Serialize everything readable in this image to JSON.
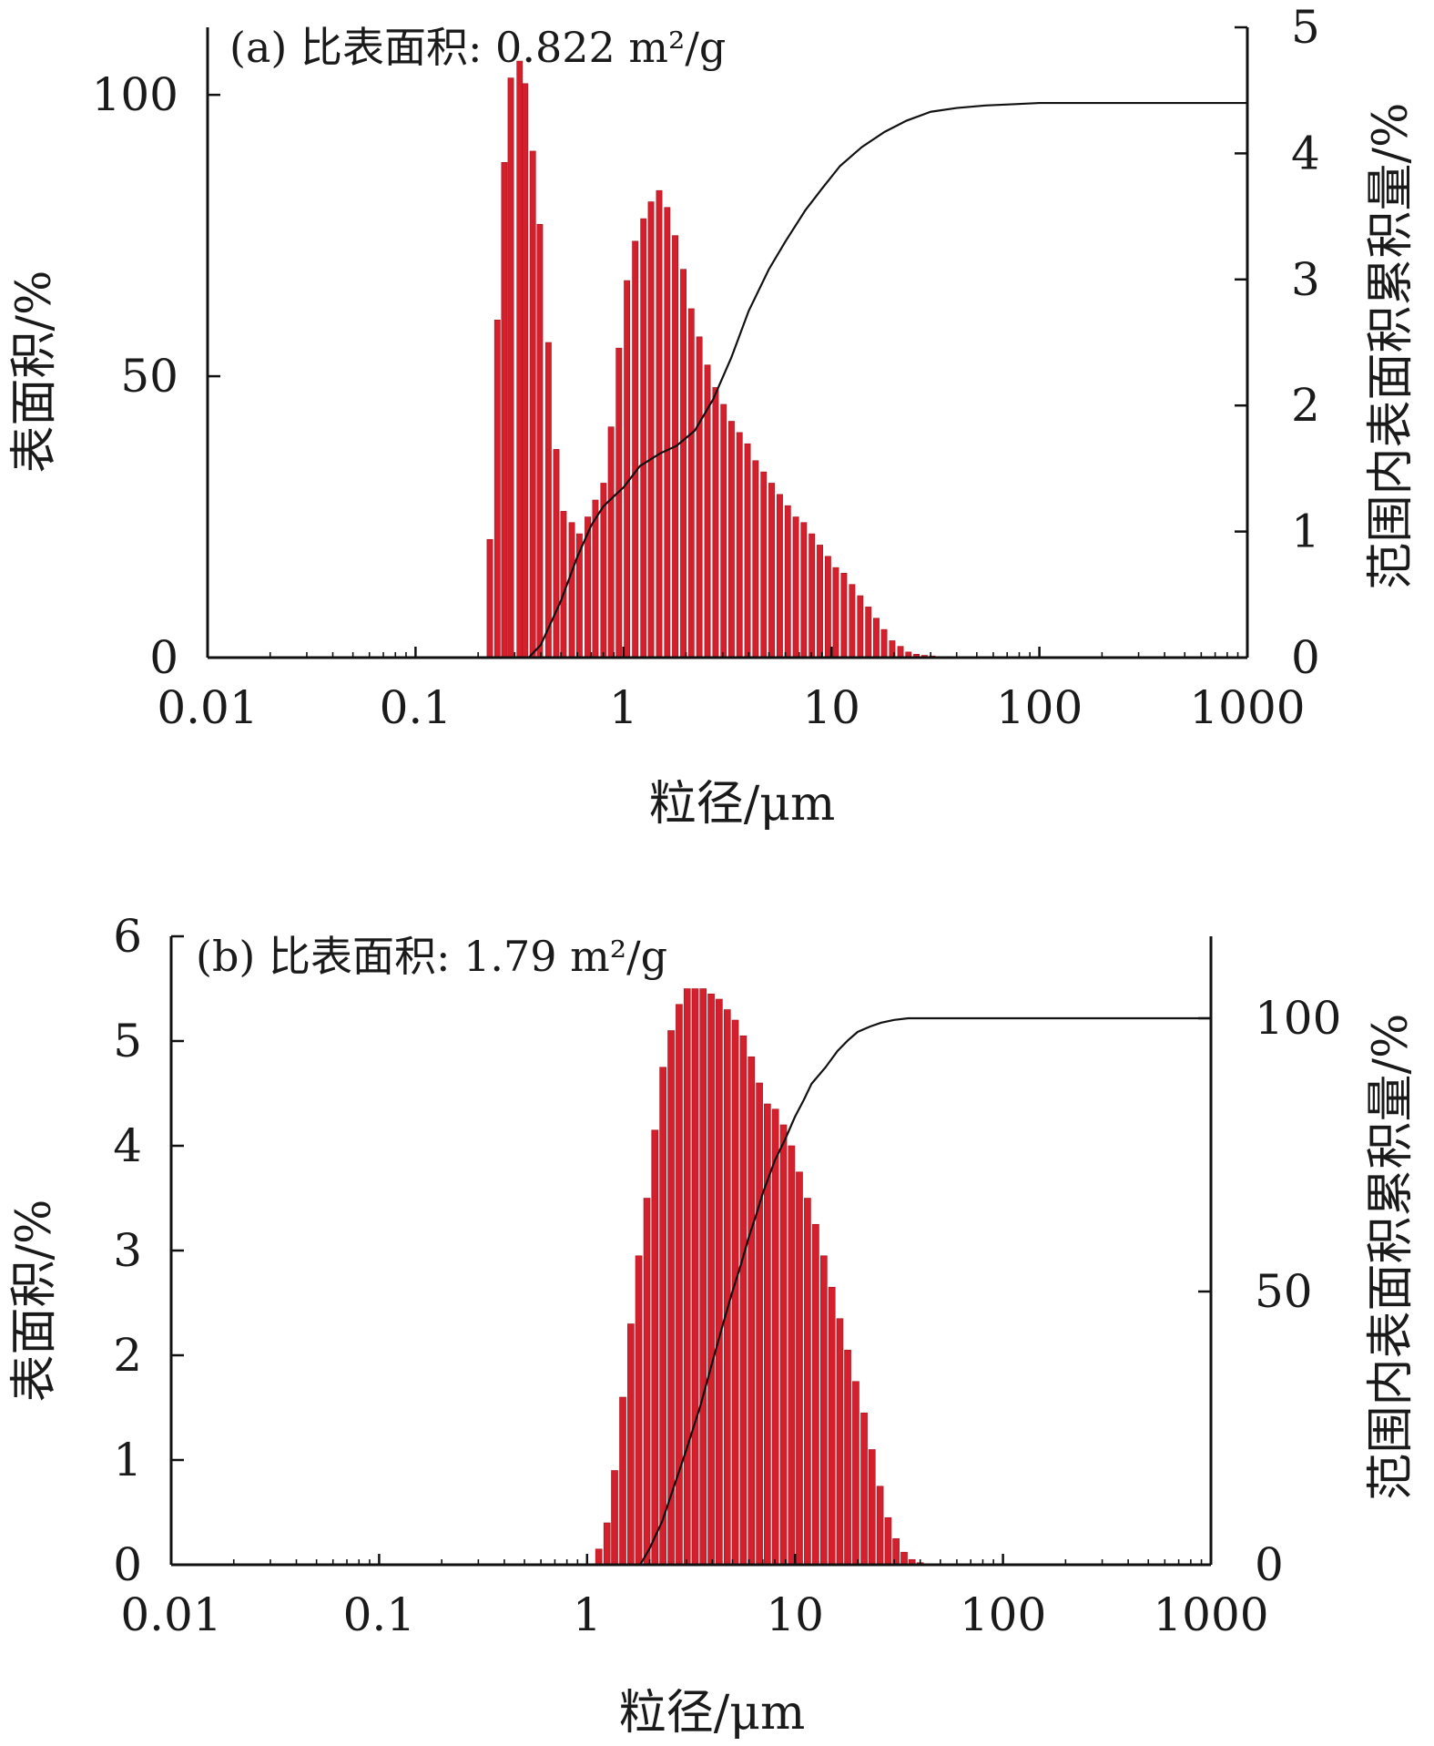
{
  "chart_data": [
    {
      "type": "bar",
      "title": "(a) 比表面积: 0.822 m²/g",
      "xlabel": "粒径/μm",
      "ylabel": "表面积/%",
      "y2label": "范围内表面积累积量/%",
      "xscale": "log",
      "xlim": [
        0.01,
        1000
      ],
      "xticks": [
        "0.01",
        "0.1",
        "1",
        "10",
        "100",
        "1000"
      ],
      "ylim": [
        0,
        112
      ],
      "yticks": [
        "0",
        "50",
        "100"
      ],
      "y2lim": [
        0,
        5
      ],
      "y2ticks": [
        "0",
        "1",
        "2",
        "3",
        "4",
        "5"
      ],
      "bar_color": "#d41f2c",
      "line_color": "#111111",
      "series": [
        {
          "kind": "bar",
          "x": [
            0.23,
            0.25,
            0.27,
            0.29,
            0.32,
            0.34,
            0.37,
            0.4,
            0.44,
            0.48,
            0.52,
            0.57,
            0.62,
            0.68,
            0.74,
            0.81,
            0.88,
            0.96,
            1.05,
            1.15,
            1.26,
            1.37,
            1.5,
            1.64,
            1.79,
            1.96,
            2.14,
            2.34,
            2.56,
            2.8,
            3.06,
            3.34,
            3.65,
            3.99,
            4.36,
            4.77,
            5.21,
            5.7,
            6.23,
            6.81,
            7.44,
            8.13,
            8.89,
            9.72,
            10.6,
            11.6,
            12.7,
            13.9,
            15.2,
            16.6,
            18.1,
            19.8,
            21.7,
            23.7,
            25.9,
            28.3,
            30.9,
            33.8,
            36.9,
            40.4,
            44.1,
            48.2,
            52.7,
            57.6,
            63.0,
            68.8,
            75.2,
            82.2
          ],
          "values": [
            21,
            60,
            88,
            103,
            106,
            102,
            90,
            77,
            56,
            37,
            26,
            24,
            22,
            25,
            28,
            31,
            41,
            55,
            67,
            74,
            78,
            81,
            83,
            80,
            75,
            69,
            62,
            57,
            52,
            48,
            45,
            42,
            40,
            38,
            35,
            33,
            31,
            29,
            27,
            25,
            24,
            22,
            20,
            18,
            16,
            15,
            13,
            11,
            9,
            7,
            5,
            3,
            2,
            1,
            0.6,
            0.4,
            0.3,
            0.2,
            0.2,
            0.1,
            0.1,
            0.1,
            0.1,
            0.1,
            0,
            0,
            0,
            0
          ]
        },
        {
          "kind": "line",
          "axis": "y2",
          "x": [
            0.35,
            0.4,
            0.5,
            0.6,
            0.7,
            0.8,
            0.9,
            1.0,
            1.2,
            1.5,
            1.8,
            2.2,
            2.7,
            3.3,
            4.0,
            5.0,
            6.0,
            7.5,
            9.0,
            11,
            14,
            18,
            23,
            30,
            40,
            55,
            75,
            100,
            1000
          ],
          "values": [
            0,
            0.1,
            0.45,
            0.8,
            1.05,
            1.2,
            1.28,
            1.35,
            1.52,
            1.62,
            1.68,
            1.8,
            2.05,
            2.38,
            2.75,
            3.08,
            3.3,
            3.55,
            3.72,
            3.9,
            4.05,
            4.17,
            4.26,
            4.33,
            4.36,
            4.38,
            4.39,
            4.4,
            4.4
          ]
        }
      ]
    },
    {
      "type": "bar",
      "title": "(b) 比表面积: 1.79 m²/g",
      "xlabel": "粒径/μm",
      "ylabel": "表面积/%",
      "y2label": "范围内表面积累积量/%",
      "xscale": "log",
      "xlim": [
        0.01,
        1000
      ],
      "xticks": [
        "0.01",
        "0.1",
        "1",
        "10",
        "100",
        "1000"
      ],
      "ylim": [
        0,
        6
      ],
      "yticks": [
        "0",
        "1",
        "2",
        "3",
        "4",
        "5",
        "6"
      ],
      "y2lim": [
        0,
        115
      ],
      "y2ticks": [
        "0",
        "50",
        "100"
      ],
      "bar_color": "#d41f2c",
      "line_color": "#111111",
      "series": [
        {
          "kind": "bar",
          "x": [
            1.15,
            1.26,
            1.37,
            1.5,
            1.64,
            1.79,
            1.96,
            2.14,
            2.34,
            2.56,
            2.8,
            3.06,
            3.34,
            3.65,
            3.99,
            4.36,
            4.77,
            5.21,
            5.7,
            6.23,
            6.81,
            7.44,
            8.13,
            8.89,
            9.72,
            10.6,
            11.6,
            12.7,
            13.9,
            15.2,
            16.6,
            18.1,
            19.8,
            21.7,
            23.7,
            25.9,
            28.3,
            30.9,
            33.8,
            36.9,
            40.4,
            44.1
          ],
          "values": [
            0.15,
            0.4,
            0.9,
            1.6,
            2.3,
            2.95,
            3.5,
            4.15,
            4.75,
            5.1,
            5.35,
            5.5,
            5.5,
            5.5,
            5.45,
            5.4,
            5.3,
            5.2,
            5.05,
            4.85,
            4.6,
            4.4,
            4.35,
            4.2,
            4.0,
            3.75,
            3.5,
            3.25,
            2.95,
            2.65,
            2.35,
            2.05,
            1.75,
            1.45,
            1.1,
            0.75,
            0.45,
            0.25,
            0.12,
            0.05,
            0.02,
            0.01
          ]
        },
        {
          "kind": "line",
          "axis": "y2",
          "x": [
            1.8,
            2.0,
            2.3,
            2.6,
            3.0,
            3.5,
            4.0,
            4.5,
            5.0,
            5.5,
            6.0,
            6.5,
            7.0,
            8.0,
            9.0,
            10,
            11,
            12,
            14,
            16,
            18,
            20,
            23,
            26,
            30,
            35,
            40,
            1000
          ],
          "values": [
            0,
            3,
            8,
            14,
            21,
            29,
            37,
            44,
            50,
            55,
            60,
            64,
            68,
            74,
            78,
            82,
            85,
            88,
            91,
            94,
            96,
            97.5,
            98.5,
            99.2,
            99.7,
            100,
            100,
            100
          ]
        }
      ]
    }
  ]
}
